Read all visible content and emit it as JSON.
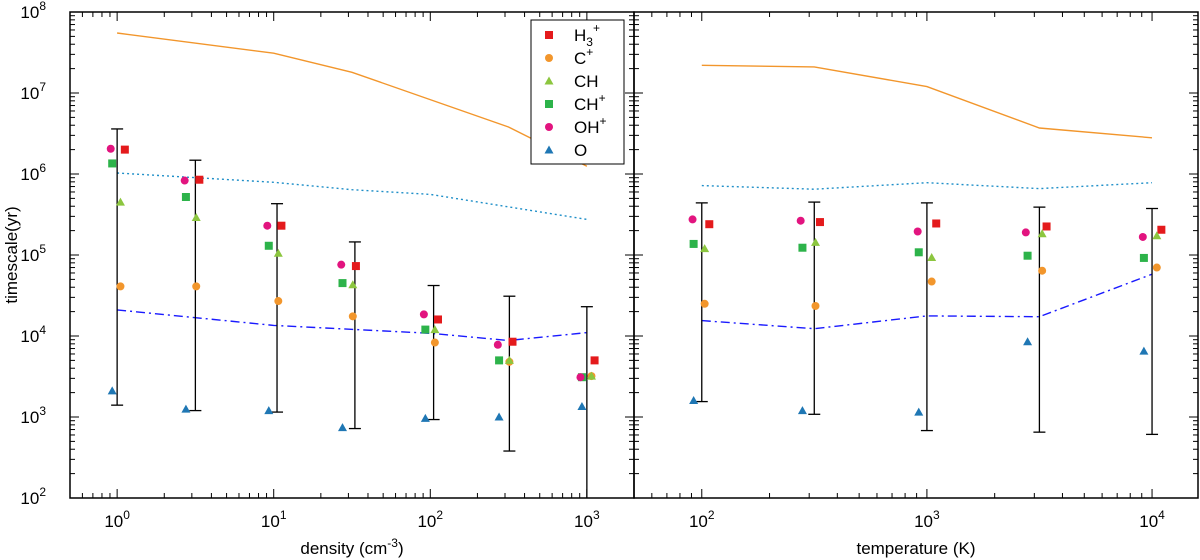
{
  "chart_data": [
    {
      "type": "scatter",
      "xlabel": "density (cm",
      "xlabel_sup": "-3",
      "xlabel_end": ")",
      "ylabel": "timescale(yr)",
      "xscale": "log",
      "yscale": "log",
      "xlim": [
        0.5,
        2000
      ],
      "ylim": [
        100,
        100000000
      ],
      "x_ticks": [
        1,
        10,
        100,
        1000
      ],
      "x_tick_labels": [
        {
          "base": "10",
          "exp": "0"
        },
        {
          "base": "10",
          "exp": "1"
        },
        {
          "base": "10",
          "exp": "2"
        },
        {
          "base": "10",
          "exp": "3"
        }
      ],
      "y_ticks": [
        100,
        1000,
        10000,
        100000,
        1000000,
        10000000,
        100000000
      ],
      "y_tick_labels": [
        {
          "base": "10",
          "exp": "2"
        },
        {
          "base": "10",
          "exp": "3"
        },
        {
          "base": "10",
          "exp": "4"
        },
        {
          "base": "10",
          "exp": "5"
        },
        {
          "base": "10",
          "exp": "6"
        },
        {
          "base": "10",
          "exp": "7"
        },
        {
          "base": "10",
          "exp": "8"
        }
      ],
      "series": [
        {
          "name": "H3+",
          "marker": "square",
          "color": "#e41a1c",
          "x": [
            1.12,
            3.35,
            11.2,
            33.5,
            112,
            335,
            1120
          ],
          "y": [
            2000000,
            850000,
            230000,
            73000,
            16000,
            8500,
            5000
          ]
        },
        {
          "name": "C+",
          "marker": "circle",
          "color": "#f2962c",
          "x": [
            1.05,
            3.2,
            10.7,
            32,
            107,
            320,
            1070
          ],
          "y": [
            41000,
            41000,
            27000,
            17500,
            8300,
            4800,
            3200
          ]
        },
        {
          "name": "CH",
          "marker": "triangle",
          "color": "#8cc63f",
          "x": [
            1.05,
            3.2,
            10.7,
            32,
            107,
            320,
            1070
          ],
          "y": [
            450000,
            290000,
            105000,
            43000,
            12000,
            5000,
            3200
          ]
        },
        {
          "name": "CH+",
          "marker": "square",
          "color": "#2db34a",
          "x": [
            0.93,
            2.75,
            9.3,
            27.5,
            93,
            275,
            930
          ],
          "y": [
            1350000,
            520000,
            130000,
            45000,
            12000,
            5000,
            3100
          ]
        },
        {
          "name": "OH+",
          "marker": "circle",
          "color": "#e2147f",
          "x": [
            0.91,
            2.7,
            9.1,
            27,
            91,
            270,
            910
          ],
          "y": [
            2050000,
            830000,
            230000,
            76000,
            18500,
            7800,
            3100
          ]
        },
        {
          "name": "O",
          "marker": "triangle",
          "color": "#1f77b4",
          "x": [
            0.93,
            2.75,
            9.3,
            27.5,
            93,
            275,
            930
          ],
          "y": [
            2100,
            1250,
            1200,
            740,
            960,
            1000,
            1350
          ]
        }
      ],
      "error_bars": {
        "x": [
          1,
          3.16,
          10.5,
          33,
          105,
          320,
          1000
        ],
        "low": [
          1400,
          1200,
          1150,
          720,
          930,
          380,
          100
        ],
        "high": [
          3600000,
          1480000,
          430000,
          145000,
          42000,
          31000,
          23000
        ]
      },
      "lines": [
        {
          "name": "upper",
          "style": "solid",
          "color": "#f2962c",
          "x": [
            1,
            10,
            31.6,
            316,
            1000
          ],
          "y": [
            55000000,
            31000000,
            18000000,
            3800000,
            1250000
          ]
        },
        {
          "name": "dotted",
          "style": "dotted",
          "color": "#1f8fc8",
          "x": [
            1,
            10,
            31.6,
            100,
            1000
          ],
          "y": [
            1030000,
            790000,
            640000,
            560000,
            275000
          ]
        },
        {
          "name": "dashdot",
          "style": "dashdot",
          "color": "#1a1aff",
          "x": [
            1,
            10,
            100,
            316,
            1000
          ],
          "y": [
            21000,
            13500,
            10800,
            8800,
            11000
          ]
        }
      ],
      "legend": {
        "position": "top-right",
        "entries": [
          {
            "base": "H",
            "sub": "3",
            "sup": "+"
          },
          {
            "base": "C",
            "sub": "",
            "sup": "+"
          },
          {
            "base": "CH",
            "sub": "",
            "sup": ""
          },
          {
            "base": "CH",
            "sub": "",
            "sup": "+"
          },
          {
            "base": "OH",
            "sub": "",
            "sup": "+"
          },
          {
            "base": "O",
            "sub": "",
            "sup": ""
          }
        ]
      }
    },
    {
      "type": "scatter",
      "xlabel": "temperature (K)",
      "xscale": "log",
      "yscale": "log",
      "xlim": [
        50,
        16000
      ],
      "ylim": [
        100,
        100000000
      ],
      "x_ticks": [
        100,
        1000,
        10000
      ],
      "x_tick_labels": [
        {
          "base": "10",
          "exp": "2"
        },
        {
          "base": "10",
          "exp": "3"
        },
        {
          "base": "10",
          "exp": "4"
        }
      ],
      "series": [
        {
          "name": "H3+",
          "marker": "square",
          "color": "#e41a1c",
          "x": [
            108,
            335,
            1100,
            3400,
            11000
          ],
          "y": [
            240000,
            255000,
            245000,
            225000,
            205000
          ]
        },
        {
          "name": "C+",
          "marker": "circle",
          "color": "#f2962c",
          "x": [
            103,
            320,
            1050,
            3250,
            10500
          ],
          "y": [
            25000,
            23500,
            47000,
            64000,
            70000
          ]
        },
        {
          "name": "CH",
          "marker": "triangle",
          "color": "#8cc63f",
          "x": [
            103,
            320,
            1050,
            3250,
            10500
          ],
          "y": [
            120000,
            143000,
            93000,
            183000,
            173000
          ]
        },
        {
          "name": "CH+",
          "marker": "square",
          "color": "#2db34a",
          "x": [
            92,
            280,
            920,
            2800,
            9200
          ],
          "y": [
            137000,
            123000,
            108000,
            98000,
            92000
          ]
        },
        {
          "name": "OH+",
          "marker": "circle",
          "color": "#e2147f",
          "x": [
            91,
            275,
            910,
            2750,
            9100
          ],
          "y": [
            275000,
            265000,
            195000,
            190000,
            167000
          ]
        },
        {
          "name": "O",
          "marker": "triangle",
          "color": "#1f77b4",
          "x": [
            92,
            280,
            920,
            2800,
            9200
          ],
          "y": [
            1600,
            1200,
            1150,
            8500,
            6500
          ]
        }
      ],
      "error_bars": {
        "x": [
          100,
          316,
          1000,
          3160,
          10000
        ],
        "low": [
          1550,
          1080,
          680,
          650,
          610
        ],
        "high": [
          440000,
          450000,
          440000,
          390000,
          375000
        ]
      },
      "lines": [
        {
          "name": "upper",
          "style": "solid",
          "color": "#f2962c",
          "x": [
            100,
            316,
            1000,
            3160,
            10000
          ],
          "y": [
            22000000,
            21000000,
            12000000,
            3700000,
            2800000
          ]
        },
        {
          "name": "dotted",
          "style": "dotted",
          "color": "#1f8fc8",
          "x": [
            100,
            316,
            1000,
            3160,
            10000
          ],
          "y": [
            720000,
            650000,
            780000,
            660000,
            780000
          ]
        },
        {
          "name": "dashdot",
          "style": "dashdot",
          "color": "#1a1aff",
          "x": [
            100,
            316,
            1000,
            3160,
            10000
          ],
          "y": [
            15500,
            12300,
            17700,
            17300,
            58000
          ]
        }
      ]
    }
  ]
}
